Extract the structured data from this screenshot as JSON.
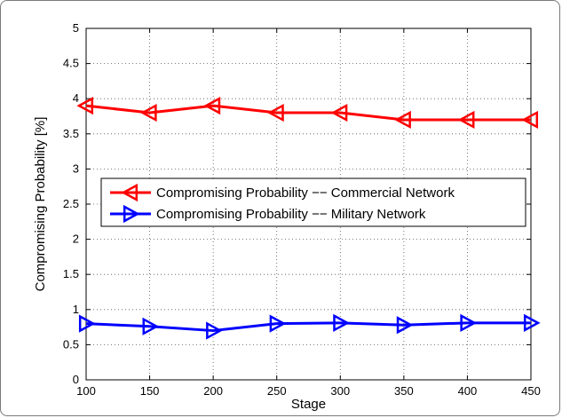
{
  "chart_data": {
    "type": "line",
    "title": "",
    "xlabel": "Stage",
    "ylabel": "Compromising Probability [%]",
    "xlim": [
      100,
      450
    ],
    "ylim": [
      0,
      5
    ],
    "xticks": [
      "100",
      "150",
      "200",
      "250",
      "300",
      "350",
      "400",
      "450"
    ],
    "yticks": [
      "0",
      "0.5",
      "1",
      "1.5",
      "2",
      "2.5",
      "3",
      "3.5",
      "4",
      "4.5",
      "5"
    ],
    "grid": true,
    "legend_position": "center-left",
    "x": [
      100,
      150,
      200,
      250,
      300,
      350,
      400,
      450
    ],
    "series": [
      {
        "name": "Compromising Probability −− Commercial Network",
        "color": "#ff0000",
        "marker": "triangle-left",
        "values": [
          3.9,
          3.8,
          3.9,
          3.8,
          3.8,
          3.7,
          3.7,
          3.7
        ]
      },
      {
        "name": "Compromising Probability −− Military Network",
        "color": "#0000ff",
        "marker": "triangle-right",
        "values": [
          0.8,
          0.76,
          0.7,
          0.8,
          0.81,
          0.78,
          0.81,
          0.81
        ]
      }
    ]
  }
}
